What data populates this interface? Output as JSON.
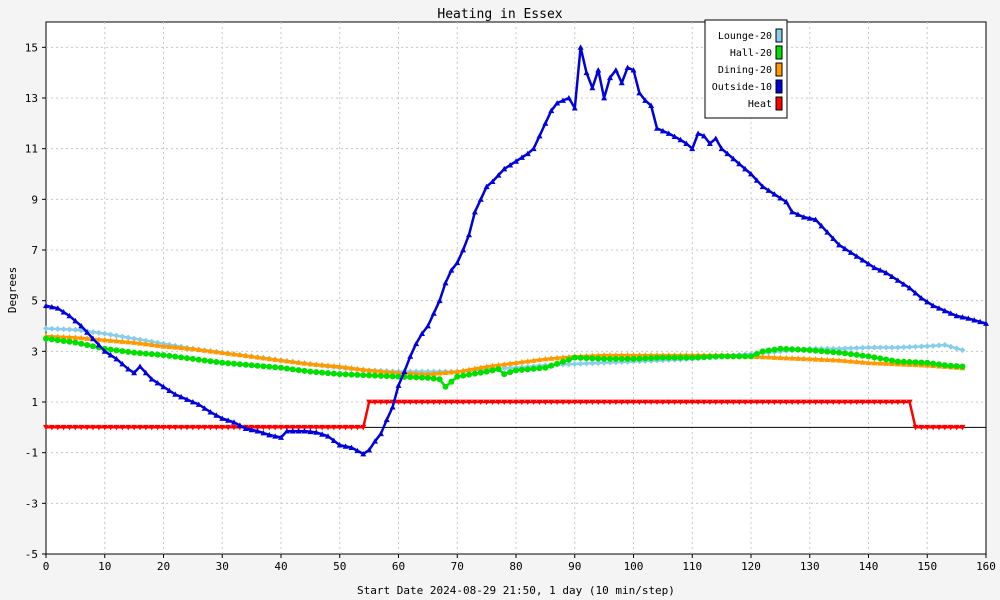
{
  "chart_data": {
    "type": "line",
    "title": "Heating in Essex",
    "xlabel": "Start Date 2024-08-29 21:50, 1 day (10 min/step)",
    "ylabel": "Degrees",
    "xlim": [
      0,
      160
    ],
    "ylim": [
      -5,
      16
    ],
    "x_ticks": [
      0,
      10,
      20,
      30,
      40,
      50,
      60,
      70,
      80,
      90,
      100,
      110,
      120,
      130,
      140,
      150,
      160
    ],
    "y_ticks": [
      -5,
      -3,
      -1,
      1,
      3,
      5,
      7,
      9,
      11,
      13,
      15
    ],
    "grid": true,
    "legend_position": "top-right",
    "zero_line": true,
    "series": [
      {
        "name": "Lounge-20",
        "color": "#87ceeb",
        "marker": "diamond",
        "points": [
          [
            0,
            3.9
          ],
          [
            5,
            3.85
          ],
          [
            10,
            3.7
          ],
          [
            15,
            3.5
          ],
          [
            20,
            3.3
          ],
          [
            25,
            3.1
          ],
          [
            30,
            2.95
          ],
          [
            35,
            2.8
          ],
          [
            40,
            2.65
          ],
          [
            45,
            2.5
          ],
          [
            50,
            2.35
          ],
          [
            55,
            2.25
          ],
          [
            60,
            2.2
          ],
          [
            65,
            2.2
          ],
          [
            68,
            2.2
          ],
          [
            70,
            2.2
          ],
          [
            75,
            2.3
          ],
          [
            80,
            2.35
          ],
          [
            85,
            2.45
          ],
          [
            90,
            2.5
          ],
          [
            95,
            2.55
          ],
          [
            100,
            2.6
          ],
          [
            105,
            2.65
          ],
          [
            110,
            2.7
          ],
          [
            115,
            2.8
          ],
          [
            120,
            2.9
          ],
          [
            125,
            3.0
          ],
          [
            130,
            3.1
          ],
          [
            135,
            3.1
          ],
          [
            140,
            3.15
          ],
          [
            145,
            3.15
          ],
          [
            150,
            3.2
          ],
          [
            153,
            3.25
          ],
          [
            156,
            3.05
          ]
        ]
      },
      {
        "name": "Hall-20",
        "color": "#00e000",
        "marker": "circle",
        "points": [
          [
            0,
            3.5
          ],
          [
            5,
            3.35
          ],
          [
            10,
            3.1
          ],
          [
            15,
            2.95
          ],
          [
            20,
            2.85
          ],
          [
            25,
            2.7
          ],
          [
            30,
            2.55
          ],
          [
            35,
            2.45
          ],
          [
            40,
            2.35
          ],
          [
            45,
            2.2
          ],
          [
            50,
            2.1
          ],
          [
            55,
            2.05
          ],
          [
            60,
            2.0
          ],
          [
            65,
            1.95
          ],
          [
            67,
            1.9
          ],
          [
            68,
            1.6
          ],
          [
            70,
            2.0
          ],
          [
            75,
            2.2
          ],
          [
            77,
            2.3
          ],
          [
            78,
            2.1
          ],
          [
            80,
            2.25
          ],
          [
            85,
            2.35
          ],
          [
            90,
            2.75
          ],
          [
            95,
            2.7
          ],
          [
            100,
            2.7
          ],
          [
            105,
            2.75
          ],
          [
            110,
            2.75
          ],
          [
            115,
            2.8
          ],
          [
            120,
            2.8
          ],
          [
            122,
            3.0
          ],
          [
            125,
            3.1
          ],
          [
            130,
            3.05
          ],
          [
            135,
            2.95
          ],
          [
            140,
            2.8
          ],
          [
            145,
            2.6
          ],
          [
            150,
            2.55
          ],
          [
            153,
            2.45
          ],
          [
            156,
            2.4
          ]
        ]
      },
      {
        "name": "Dining-20",
        "color": "#ff9900",
        "marker": "triangle-up",
        "points": [
          [
            0,
            3.6
          ],
          [
            5,
            3.55
          ],
          [
            10,
            3.45
          ],
          [
            15,
            3.35
          ],
          [
            20,
            3.2
          ],
          [
            25,
            3.1
          ],
          [
            30,
            2.95
          ],
          [
            35,
            2.8
          ],
          [
            40,
            2.65
          ],
          [
            45,
            2.5
          ],
          [
            50,
            2.4
          ],
          [
            55,
            2.25
          ],
          [
            60,
            2.15
          ],
          [
            65,
            2.1
          ],
          [
            70,
            2.2
          ],
          [
            75,
            2.4
          ],
          [
            80,
            2.55
          ],
          [
            85,
            2.7
          ],
          [
            90,
            2.8
          ],
          [
            95,
            2.85
          ],
          [
            100,
            2.85
          ],
          [
            105,
            2.85
          ],
          [
            110,
            2.85
          ],
          [
            115,
            2.85
          ],
          [
            120,
            2.8
          ],
          [
            125,
            2.75
          ],
          [
            130,
            2.7
          ],
          [
            135,
            2.65
          ],
          [
            140,
            2.55
          ],
          [
            145,
            2.5
          ],
          [
            150,
            2.45
          ],
          [
            156,
            2.35
          ]
        ]
      },
      {
        "name": "Outside-10",
        "color": "#0000dd",
        "marker": "triangle-up",
        "points": [
          [
            0,
            4.8
          ],
          [
            2,
            4.7
          ],
          [
            4,
            4.4
          ],
          [
            6,
            4.0
          ],
          [
            8,
            3.5
          ],
          [
            10,
            3.0
          ],
          [
            12,
            2.7
          ],
          [
            14,
            2.3
          ],
          [
            15,
            2.15
          ],
          [
            16,
            2.4
          ],
          [
            18,
            1.9
          ],
          [
            20,
            1.6
          ],
          [
            22,
            1.3
          ],
          [
            24,
            1.1
          ],
          [
            26,
            0.9
          ],
          [
            28,
            0.6
          ],
          [
            30,
            0.35
          ],
          [
            32,
            0.2
          ],
          [
            34,
            -0.05
          ],
          [
            36,
            -0.15
          ],
          [
            38,
            -0.3
          ],
          [
            40,
            -0.4
          ],
          [
            41,
            -0.15
          ],
          [
            44,
            -0.15
          ],
          [
            46,
            -0.2
          ],
          [
            48,
            -0.35
          ],
          [
            50,
            -0.7
          ],
          [
            52,
            -0.8
          ],
          [
            54,
            -1.05
          ],
          [
            55,
            -0.9
          ],
          [
            56,
            -0.55
          ],
          [
            57,
            -0.25
          ],
          [
            58,
            0.3
          ],
          [
            59,
            0.8
          ],
          [
            60,
            1.65
          ],
          [
            61,
            2.2
          ],
          [
            62,
            2.8
          ],
          [
            63,
            3.3
          ],
          [
            64,
            3.7
          ],
          [
            65,
            4.0
          ],
          [
            66,
            4.5
          ],
          [
            67,
            5.0
          ],
          [
            68,
            5.7
          ],
          [
            69,
            6.2
          ],
          [
            70,
            6.5
          ],
          [
            71,
            7.0
          ],
          [
            72,
            7.6
          ],
          [
            73,
            8.5
          ],
          [
            74,
            9.0
          ],
          [
            75,
            9.5
          ],
          [
            76,
            9.7
          ],
          [
            78,
            10.2
          ],
          [
            80,
            10.5
          ],
          [
            82,
            10.8
          ],
          [
            83,
            11.0
          ],
          [
            84,
            11.5
          ],
          [
            85,
            12.0
          ],
          [
            86,
            12.5
          ],
          [
            87,
            12.8
          ],
          [
            88,
            12.9
          ],
          [
            89,
            13.0
          ],
          [
            90,
            12.6
          ],
          [
            91,
            15.0
          ],
          [
            92,
            14.0
          ],
          [
            93,
            13.4
          ],
          [
            94,
            14.1
          ],
          [
            95,
            13.0
          ],
          [
            96,
            13.8
          ],
          [
            97,
            14.1
          ],
          [
            98,
            13.6
          ],
          [
            99,
            14.2
          ],
          [
            100,
            14.1
          ],
          [
            101,
            13.2
          ],
          [
            102,
            12.9
          ],
          [
            103,
            12.7
          ],
          [
            104,
            11.8
          ],
          [
            106,
            11.6
          ],
          [
            108,
            11.35
          ],
          [
            109,
            11.2
          ],
          [
            110,
            11.0
          ],
          [
            111,
            11.6
          ],
          [
            112,
            11.5
          ],
          [
            113,
            11.2
          ],
          [
            114,
            11.4
          ],
          [
            115,
            11.0
          ],
          [
            116,
            10.8
          ],
          [
            118,
            10.4
          ],
          [
            120,
            10.0
          ],
          [
            122,
            9.5
          ],
          [
            124,
            9.2
          ],
          [
            126,
            8.9
          ],
          [
            127,
            8.5
          ],
          [
            129,
            8.3
          ],
          [
            131,
            8.2
          ],
          [
            133,
            7.7
          ],
          [
            135,
            7.2
          ],
          [
            137,
            6.9
          ],
          [
            139,
            6.6
          ],
          [
            141,
            6.3
          ],
          [
            143,
            6.1
          ],
          [
            145,
            5.8
          ],
          [
            147,
            5.5
          ],
          [
            149,
            5.1
          ],
          [
            151,
            4.8
          ],
          [
            153,
            4.6
          ],
          [
            155,
            4.4
          ],
          [
            157,
            4.3
          ],
          [
            160,
            4.1
          ]
        ]
      },
      {
        "name": "Heat",
        "color": "#ff0000",
        "marker": "triangle-down",
        "points": [
          [
            0,
            0
          ],
          [
            54,
            0
          ],
          [
            55,
            1
          ],
          [
            147,
            1
          ],
          [
            148,
            0
          ],
          [
            156,
            0
          ]
        ]
      }
    ]
  }
}
